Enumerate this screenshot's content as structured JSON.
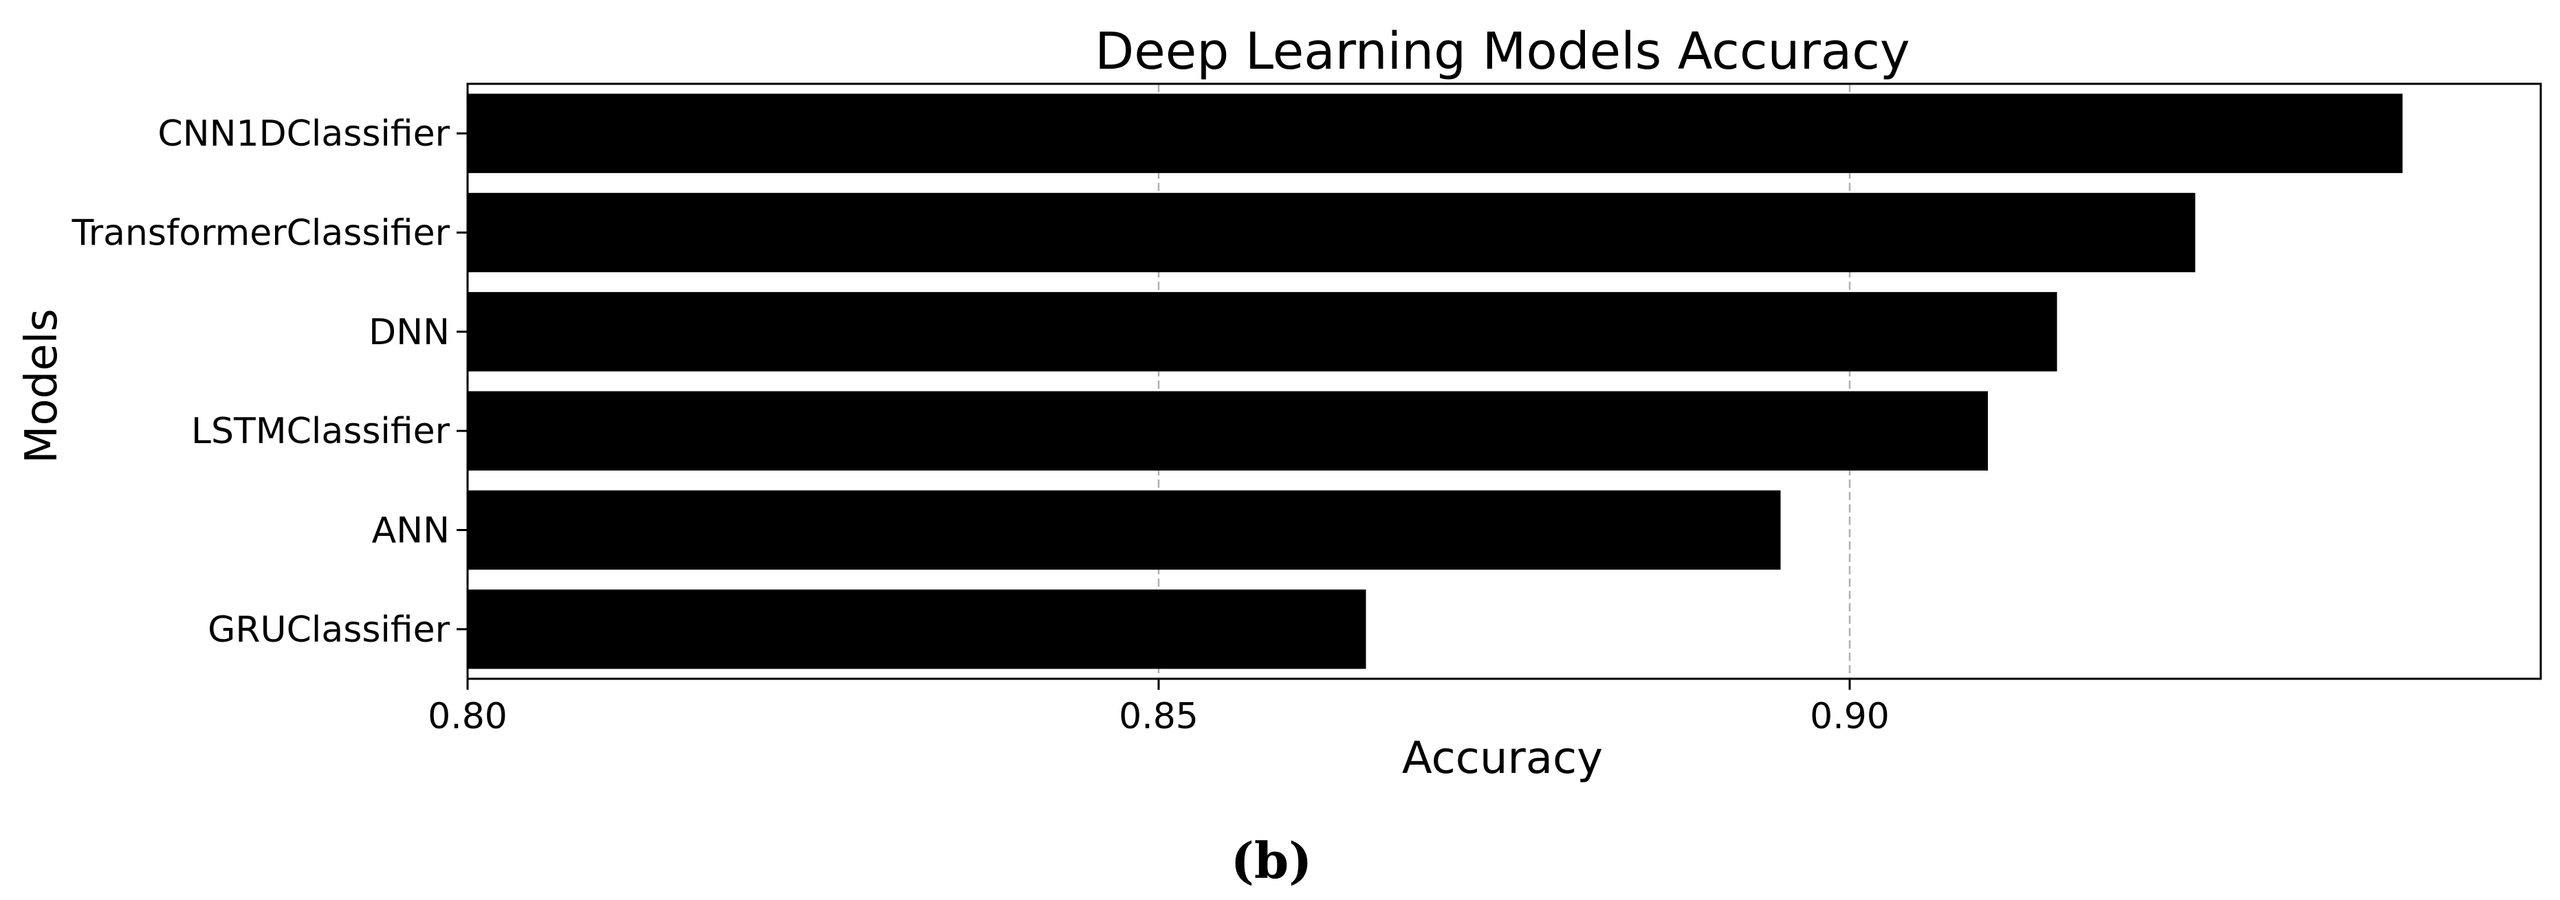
{
  "chart_data": {
    "type": "bar",
    "orientation": "horizontal",
    "title": "Deep Learning Models Accuracy",
    "xlabel": "Accuracy",
    "ylabel": "Models",
    "categories": [
      "CNN1DClassifier",
      "TransformerClassifier",
      "DNN",
      "LSTMClassifier",
      "ANN",
      "GRUClassifier"
    ],
    "values": [
      0.94,
      0.925,
      0.915,
      0.91,
      0.895,
      0.865
    ],
    "xlim": [
      0.8,
      0.95
    ],
    "xticks": [
      0.8,
      0.85,
      0.9
    ],
    "xtick_labels": [
      "0.80",
      "0.85",
      "0.90"
    ],
    "grid": "vertical dashed",
    "bar_color": "#000000",
    "grid_color": "#b0b0b0"
  },
  "caption": "(b)"
}
